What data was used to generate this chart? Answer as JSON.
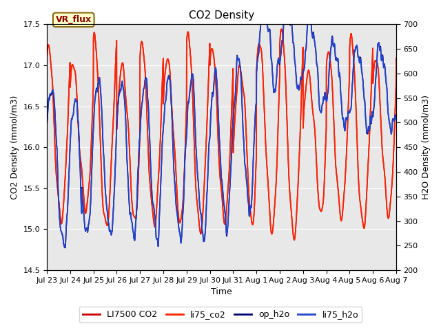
{
  "title": "CO2 Density",
  "xlabel": "Time",
  "ylabel_left": "CO2 Density (mmol/m3)",
  "ylabel_right": "H2O Density (mmol/m3)",
  "ylim_left": [
    14.5,
    17.5
  ],
  "ylim_right": [
    200,
    700
  ],
  "xlim": [
    0,
    15
  ],
  "xtick_labels": [
    "Jul 23",
    "Jul 24",
    "Jul 25",
    "Jul 26",
    "Jul 27",
    "Jul 28",
    "Jul 29",
    "Jul 30",
    "Jul 31",
    "Aug 1",
    "Aug 2",
    "Aug 3",
    "Aug 4",
    "Aug 5",
    "Aug 6",
    "Aug 7"
  ],
  "xtick_positions": [
    0,
    1,
    2,
    3,
    4,
    5,
    6,
    7,
    8,
    9,
    10,
    11,
    12,
    13,
    14,
    15
  ],
  "yticks_left": [
    14.5,
    15.0,
    15.5,
    16.0,
    16.5,
    17.0,
    17.5
  ],
  "yticks_right": [
    200,
    250,
    300,
    350,
    400,
    450,
    500,
    550,
    600,
    650,
    700
  ],
  "color_li7500": "#CC0000",
  "color_li75_co2": "#FF2200",
  "color_op_h2o": "#000077",
  "color_li75_h2o": "#2244CC",
  "legend_labels": [
    "LI7500 CO2",
    "li75_co2",
    "op_h2o",
    "li75_h2o"
  ],
  "vr_flux_label": "VR_flux",
  "plot_bg_color": "#E8E8E8",
  "fig_bg": "#FFFFFF",
  "title_fontsize": 11,
  "axis_label_fontsize": 9,
  "tick_fontsize": 8,
  "legend_fontsize": 9
}
